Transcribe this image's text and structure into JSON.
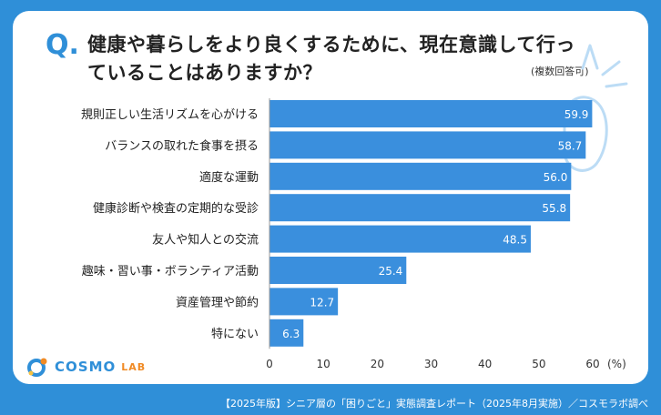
{
  "title": {
    "q_mark": "Q.",
    "question": "健康や暮らしをより良くするために、現在意識して行っていることはありますか？",
    "note": "(複数回答可)"
  },
  "logo": {
    "name": "COSMO",
    "suffix": "LAB"
  },
  "footer": "【2025年版】シニア層の「困りごと」実態調査レポート（2025年8月実施）／コスモラボ調べ",
  "colors": {
    "bar": "#3a8fdd",
    "frame": "#2f8fd8",
    "accent": "#f08a24"
  },
  "chart_data": {
    "type": "bar",
    "orientation": "horizontal",
    "categories": [
      "規則正しい生活リズムを心がける",
      "バランスの取れた食事を摂る",
      "適度な運動",
      "健康診断や検査の定期的な受診",
      "友人や知人との交流",
      "趣味・習い事・ボランティア活動",
      "資産管理や節約",
      "特にない"
    ],
    "values": [
      59.9,
      58.7,
      56.0,
      55.8,
      48.5,
      25.4,
      12.7,
      6.3
    ],
    "value_labels": [
      "59.9",
      "58.7",
      "56.0",
      "55.8",
      "48.5",
      "25.4",
      "12.7",
      "6.3"
    ],
    "xlim": [
      0,
      60
    ],
    "ticks": [
      "0",
      "10",
      "20",
      "30",
      "40",
      "50",
      "60"
    ],
    "tick_values": [
      0,
      10,
      20,
      30,
      40,
      50,
      60
    ],
    "unit": "(%)"
  }
}
